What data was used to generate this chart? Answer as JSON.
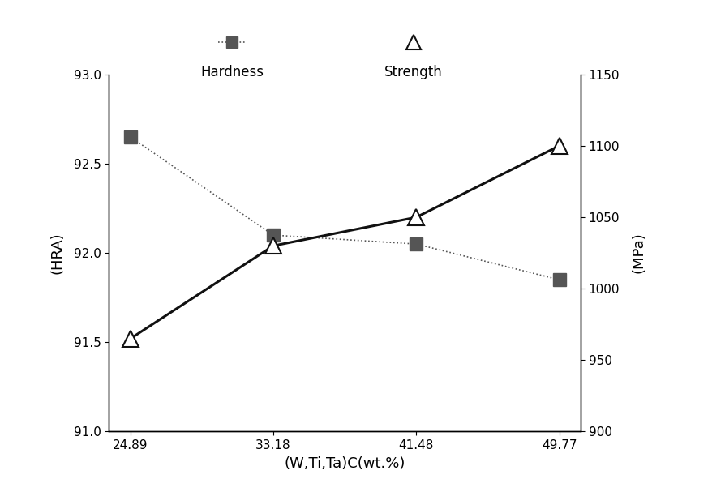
{
  "x": [
    24.89,
    33.18,
    41.48,
    49.77
  ],
  "hardness": [
    92.65,
    92.1,
    92.05,
    91.85
  ],
  "strength": [
    965,
    1030,
    1050,
    1100
  ],
  "xlabel": "(W,Ti,Ta)C(wt.%)",
  "ylabel_left": "(HRA)",
  "ylabel_right": "(MPa)",
  "ylim_left": [
    91,
    93
  ],
  "ylim_right": [
    900,
    1150
  ],
  "yticks_left": [
    91,
    91.5,
    92,
    92.5,
    93
  ],
  "yticks_right": [
    900,
    950,
    1000,
    1050,
    1100,
    1150
  ],
  "legend_hardness": "Hardness",
  "legend_strength": "Strength",
  "hardness_color": "#555555",
  "strength_color": "#111111",
  "bg_color": "#ffffff"
}
